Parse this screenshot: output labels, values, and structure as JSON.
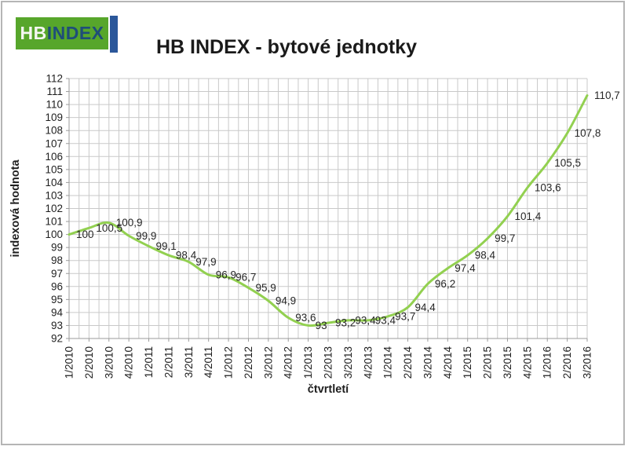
{
  "logo": {
    "hb": "HB",
    "index": "INDEX"
  },
  "title": "HB INDEX - bytové jednotky",
  "chart_data": {
    "type": "line",
    "title": "HB INDEX - bytové jednotky",
    "xlabel": "čtvrtletí",
    "ylabel": "indexová hodnota",
    "categories": [
      "1/2010",
      "2/2010",
      "3/2010",
      "4/2010",
      "1/2011",
      "2/2011",
      "3/2011",
      "4/2011",
      "1/2012",
      "2/2012",
      "3/2012",
      "4/2012",
      "1/2013",
      "2/2013",
      "3/2013",
      "4/2013",
      "1/2014",
      "2/2014",
      "3/2014",
      "4/2014",
      "1/2015",
      "2/2015",
      "3/2015",
      "4/2015",
      "1/2016",
      "2/2016",
      "3/2016"
    ],
    "values": [
      100,
      100.5,
      100.9,
      99.9,
      99.1,
      98.4,
      97.9,
      96.9,
      96.7,
      95.9,
      94.9,
      93.6,
      93,
      93.2,
      93.4,
      93.4,
      93.7,
      94.4,
      96.2,
      97.4,
      98.4,
      99.7,
      101.4,
      103.6,
      105.5,
      107.8,
      110.7
    ],
    "point_labels": [
      "100",
      "100,5",
      "100,9",
      "99,9",
      "99,1",
      "98,4",
      "97,9",
      "96,9",
      "96,7",
      "95,9",
      "94,9",
      "93,6",
      "93",
      "93,2",
      "93,4",
      "93,4",
      "93,7",
      "94,4",
      "96,2",
      "97,4",
      "98,4",
      "99,7",
      "101,4",
      "103,6",
      "105,5",
      "107,8",
      "110,7"
    ],
    "ylim": [
      92,
      112
    ],
    "y_major": 1,
    "grid": true,
    "legend_position": "none",
    "smooth": true
  },
  "colors": {
    "line": "#92d050",
    "gridline": "#c9c9c9",
    "axis": "#9b9b9b",
    "tick_text": "#1f1f1f",
    "data_label": "#262626",
    "logo_green": "#57a62b",
    "logo_blue": "#1f4e79",
    "logo_bar_blue": "#2b579a",
    "frame_border": "#b5b5b5"
  }
}
